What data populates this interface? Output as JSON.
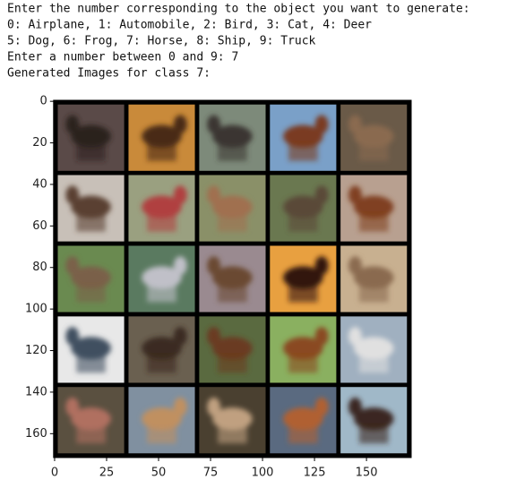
{
  "console": [
    "Enter the number corresponding to the object you want to generate:",
    "0: Airplane, 1: Automobile, 2: Bird, 3: Cat, 4: Deer",
    "5: Dog, 6: Frog, 7: Horse, 8: Ship, 9: Truck",
    "Enter a number between 0 and 9: 7",
    "Generated Images for class 7:"
  ],
  "plot": {
    "xlim": [
      -0.5,
      171.5
    ],
    "ylim": [
      -0.5,
      171.5
    ],
    "xticks": [
      0,
      25,
      50,
      75,
      100,
      125,
      150
    ],
    "yticks": [
      0,
      20,
      40,
      60,
      80,
      100,
      120,
      140,
      160
    ]
  }
}
